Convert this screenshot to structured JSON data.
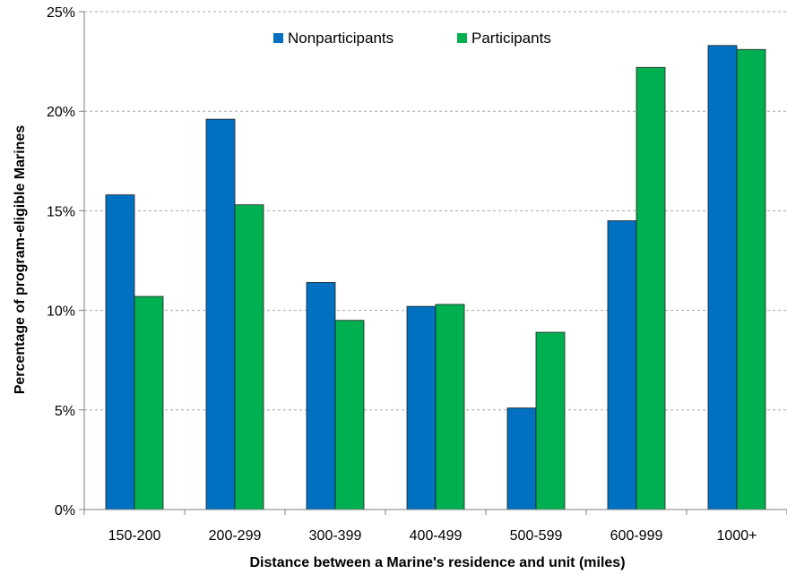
{
  "chart_data": {
    "type": "bar",
    "categories": [
      "150-200",
      "200-299",
      "300-399",
      "400-499",
      "500-599",
      "600-999",
      "1000+"
    ],
    "series": [
      {
        "name": "Nonparticipants",
        "color": "#0070c0",
        "values": [
          15.8,
          19.6,
          11.4,
          10.2,
          5.1,
          14.5,
          23.3
        ]
      },
      {
        "name": "Participants",
        "color": "#00b050",
        "values": [
          10.7,
          15.3,
          9.5,
          10.3,
          8.9,
          22.2,
          23.1
        ]
      }
    ],
    "xlabel": "Distance between a Marine's residence and unit (miles)",
    "ylabel": "Percentage of program-eligible Marines",
    "ylim": [
      0,
      25
    ],
    "yticks": [
      0,
      5,
      10,
      15,
      20,
      25
    ],
    "ytick_labels": [
      "0%",
      "5%",
      "10%",
      "15%",
      "20%",
      "25%"
    ],
    "grid": true,
    "legend": "top-center"
  }
}
